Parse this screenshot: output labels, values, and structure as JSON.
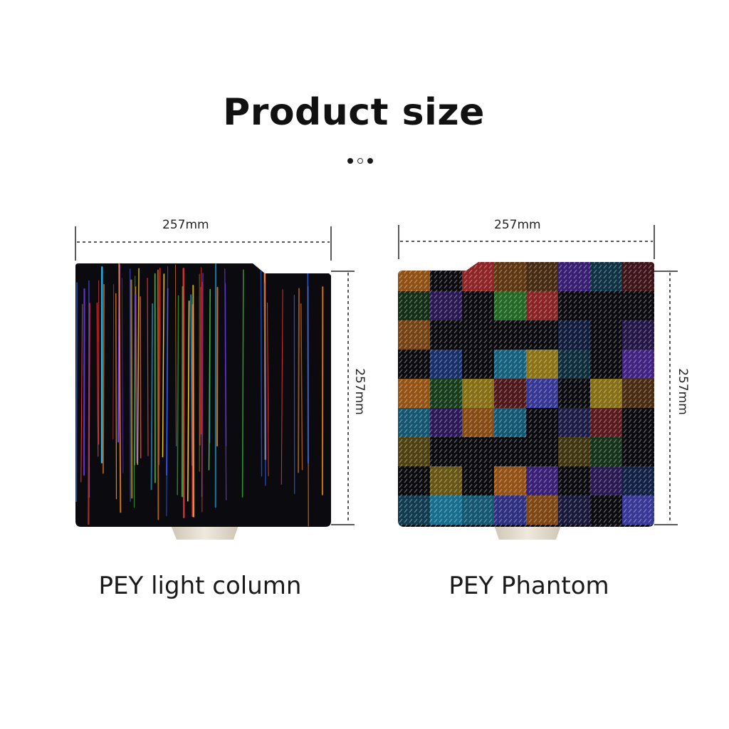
{
  "header": {
    "title": "Product size",
    "dots": [
      {
        "style": "filled"
      },
      {
        "style": "hollow"
      },
      {
        "style": "filled"
      }
    ]
  },
  "products": [
    {
      "name": "PEY light column",
      "width_label": "257mm",
      "height_label": "257mm",
      "pattern": "vertical-light-streaks"
    },
    {
      "name": "PEY Phantom",
      "width_label": "257mm",
      "height_label": "257mm",
      "pattern": "holographic-checker"
    }
  ],
  "colors": {
    "plate": "#0b0a0e",
    "dimension_line": "#222222",
    "stand": "#d9d2c4"
  }
}
